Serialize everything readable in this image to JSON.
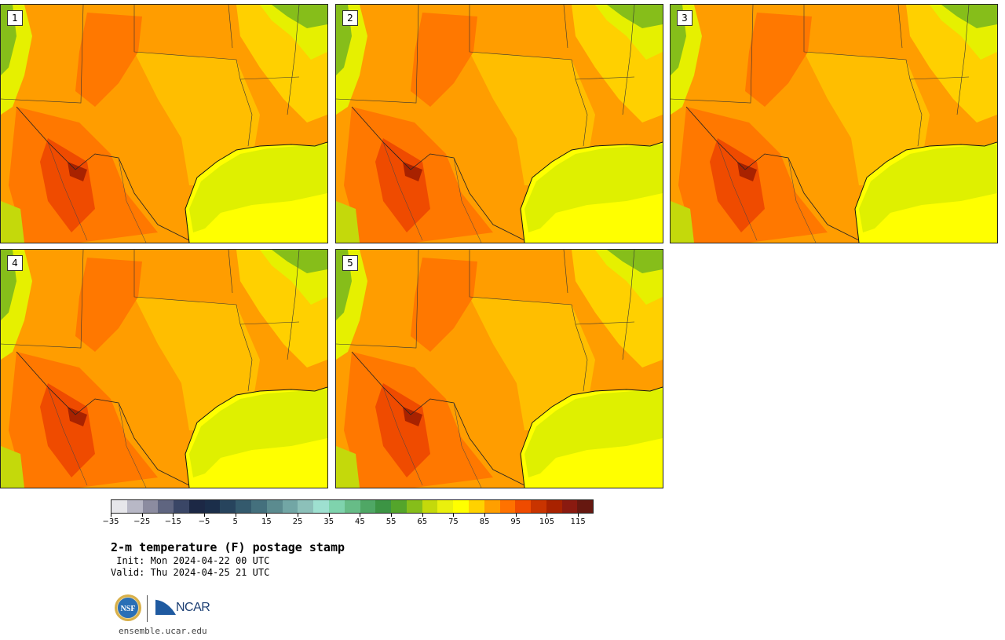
{
  "panels": [
    {
      "member": "1"
    },
    {
      "member": "2"
    },
    {
      "member": "3"
    },
    {
      "member": "4"
    },
    {
      "member": "5"
    }
  ],
  "colorbar": {
    "colors": [
      "#e6e6ea",
      "#b8b8c6",
      "#8c8ca0",
      "#5f6580",
      "#3a4666",
      "#1c2845",
      "#1b2e4a",
      "#27445d",
      "#345a6d",
      "#44707d",
      "#5b8b8f",
      "#72a6a5",
      "#8cc0b9",
      "#9ee0d0",
      "#7fd3ad",
      "#67bc87",
      "#4fa765",
      "#3c9444",
      "#54a52b",
      "#86be1a",
      "#c4d90b",
      "#eaf00d",
      "#ffff00",
      "#ffd200",
      "#ff9f00",
      "#ff7200",
      "#ef4b00",
      "#c93400",
      "#a82200",
      "#8a1a10",
      "#661810"
    ],
    "tick_values": [
      -35,
      -25,
      -15,
      -5,
      5,
      15,
      25,
      35,
      45,
      55,
      65,
      75,
      85,
      95,
      105,
      115
    ],
    "tick_labels": [
      "−35",
      "−25",
      "−15",
      "−5",
      "5",
      "15",
      "25",
      "35",
      "45",
      "55",
      "65",
      "75",
      "85",
      "95",
      "105",
      "115"
    ],
    "min": -35,
    "max": 120
  },
  "title": "2-m temperature (F) postage stamp",
  "init": " Init: Mon 2024-04-22 00 UTC",
  "valid": "Valid: Thu 2024-04-25 21 UTC",
  "logos": {
    "nsf": "NSF",
    "ncar": "NCAR"
  },
  "site": "ensemble.ucar.edu"
}
